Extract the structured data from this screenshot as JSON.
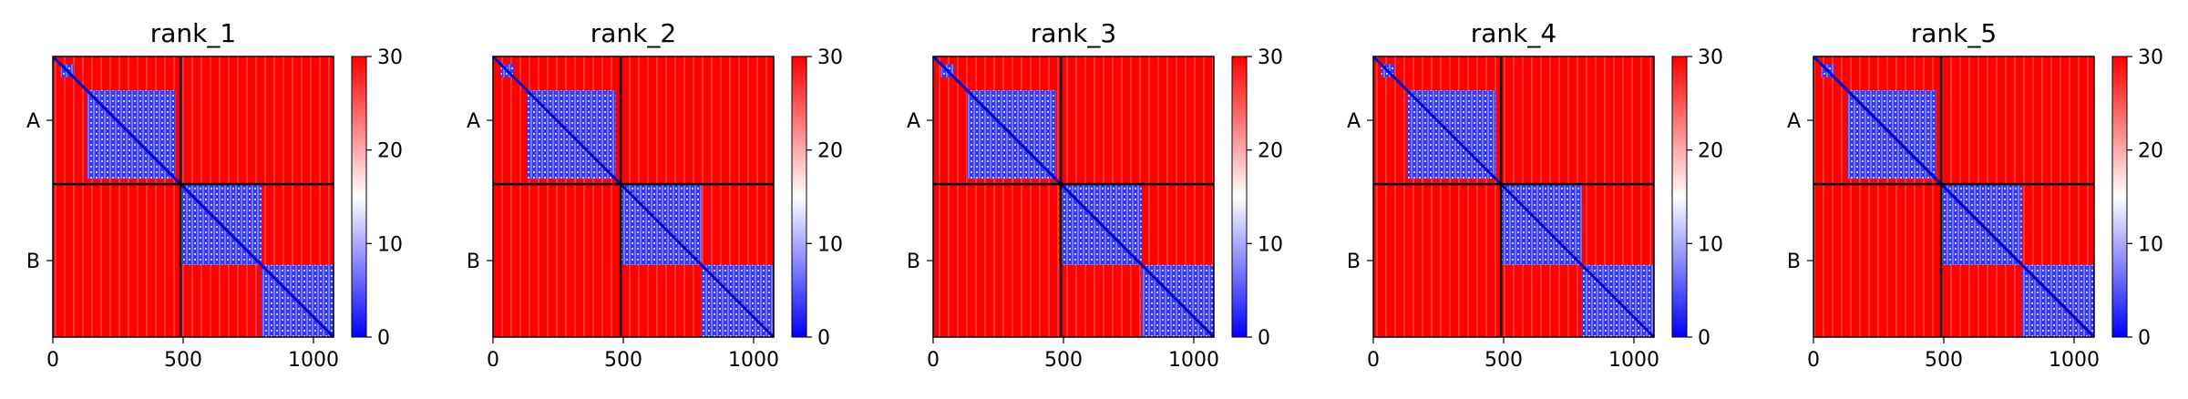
{
  "chart_data": {
    "type": "heatmap",
    "chains": [
      "A",
      "B"
    ],
    "chain_boundary": 490,
    "xlim": [
      0,
      1077
    ],
    "xticks": [
      0,
      500,
      1000
    ],
    "colorbar": {
      "min": 0,
      "max": 30,
      "ticks": [
        0,
        10,
        20,
        30
      ],
      "colormap": [
        "#0000ff",
        "#ffffff",
        "#ff0000"
      ]
    },
    "domains": {
      "A": [
        [
          30,
          80
        ],
        [
          130,
          470
        ]
      ],
      "B": [
        [
          490,
          800
        ],
        [
          800,
          1077
        ]
      ]
    },
    "panels": [
      {
        "title": "rank_1"
      },
      {
        "title": "rank_2"
      },
      {
        "title": "rank_3"
      },
      {
        "title": "rank_4"
      },
      {
        "title": "rank_5"
      }
    ]
  }
}
